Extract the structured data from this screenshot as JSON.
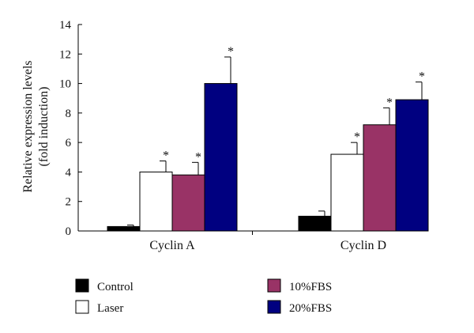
{
  "chart_data": {
    "type": "bar",
    "title": "",
    "xlabel": "",
    "ylabel": [
      "Relative expression levels",
      "(fold induction)"
    ],
    "ylim": [
      0,
      14
    ],
    "yticks": [
      0,
      2,
      4,
      6,
      8,
      10,
      12,
      14
    ],
    "grid": false,
    "legend_position": "bottom",
    "categories": [
      "Cyclin A",
      "Cyclin D"
    ],
    "series": [
      {
        "name": "Control",
        "color": "#000000",
        "values": [
          0.3,
          1.0
        ],
        "errors": [
          0.1,
          0.35
        ],
        "significant": [
          false,
          false
        ]
      },
      {
        "name": "Laser",
        "color": "#ffffff",
        "values": [
          4.0,
          5.2
        ],
        "errors": [
          0.75,
          0.8
        ],
        "significant": [
          true,
          true
        ]
      },
      {
        "name": "10%FBS",
        "color": "#993366",
        "values": [
          3.8,
          7.2
        ],
        "errors": [
          0.85,
          1.15
        ],
        "significant": [
          true,
          true
        ]
      },
      {
        "name": "20%FBS",
        "color": "#000080",
        "values": [
          10.0,
          8.9
        ],
        "errors": [
          1.8,
          1.2
        ],
        "significant": [
          true,
          true
        ]
      }
    ],
    "significance_marker": "*"
  }
}
